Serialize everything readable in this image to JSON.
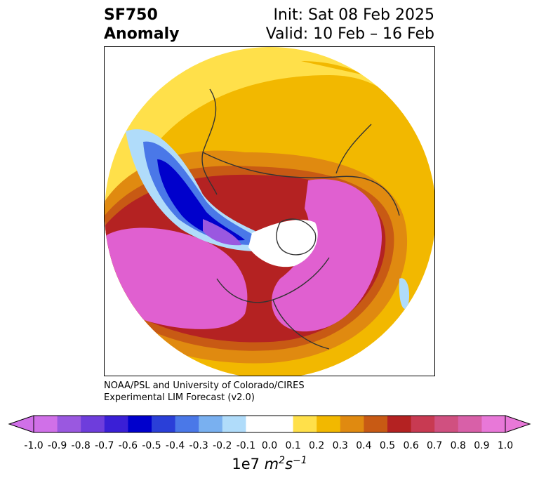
{
  "title": {
    "left_line1": "SF750",
    "left_line2": "Anomaly",
    "right_line1": "Init: Sat 08 Feb 2025",
    "right_line2": "Valid: 10 Feb – 16 Feb"
  },
  "credit": {
    "line1": "NOAA/PSL and University of Colorado/CIRES",
    "line2": "Experimental LIM Forecast (v2.0)"
  },
  "colorbar": {
    "ticks": [
      "-1.0",
      "-0.9",
      "-0.8",
      "-0.7",
      "-0.6",
      "-0.5",
      "-0.4",
      "-0.3",
      "-0.2",
      "-0.1",
      "0.0",
      "0.1",
      "0.2",
      "0.3",
      "0.4",
      "0.5",
      "0.6",
      "0.7",
      "0.8",
      "0.9",
      "1.0"
    ],
    "colors": [
      "#d070e8",
      "#9a58e0",
      "#6e3ddc",
      "#3a1fd6",
      "#0000cc",
      "#2a3fd8",
      "#4a78e8",
      "#79b0f0",
      "#b0dcfa",
      "#ffffff",
      "#ffffff",
      "#ffe04a",
      "#f2b800",
      "#e08a10",
      "#c85a14",
      "#b42222",
      "#c83a52",
      "#d05080",
      "#d860a8",
      "#e878d8"
    ],
    "units_base": "1e7",
    "units_m": "m",
    "units_m_exp": "2",
    "units_s": "s",
    "units_s_exp": "−1"
  },
  "map": {
    "projection": "north-polar-stereographic",
    "fill_colors": {
      "strong_pos": "#e060d0",
      "pos_red": "#b42222",
      "pos_orange": "#e08a10",
      "pos_gold": "#f2b800",
      "pos_yellow": "#ffe04a",
      "neg_light": "#b0dcfa",
      "neg_mid": "#4a78e8",
      "neg_dark": "#0000cc",
      "neg_violet": "#9a58e0",
      "coast": "#333333"
    }
  }
}
